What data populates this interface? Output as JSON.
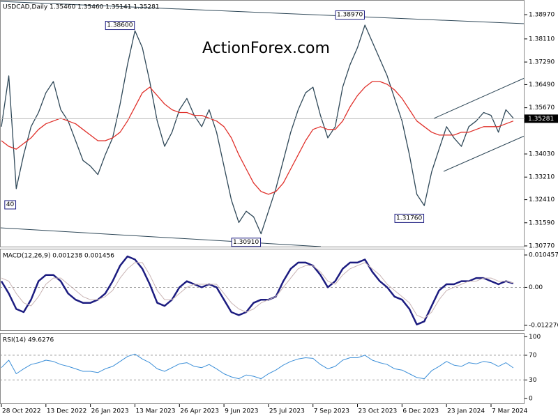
{
  "chart_data": [
    {
      "type": "line",
      "title": "USDCAD,Daily  1.35460 1.35460 1.35141 1.35281",
      "watermark": "ActionForex.com",
      "ylim": [
        1.3072,
        1.3949
      ],
      "yticks": [
        {
          "value": 1.3897,
          "label": "1.38970"
        },
        {
          "value": 1.3811,
          "label": "1.38110"
        },
        {
          "value": 1.3729,
          "label": "1.37290"
        },
        {
          "value": 1.3649,
          "label": "1.36490"
        },
        {
          "value": 1.3567,
          "label": "1.35670"
        },
        {
          "value": 1.3403,
          "label": "1.34030"
        },
        {
          "value": 1.3321,
          "label": "1.33210"
        },
        {
          "value": 1.3241,
          "label": "1.32410"
        },
        {
          "value": 1.3159,
          "label": "1.31590"
        },
        {
          "value": 1.3077,
          "label": "1.30770"
        }
      ],
      "last_price": {
        "value": 1.35281,
        "label": "1.35281"
      },
      "annotations": [
        {
          "text": "1.38600",
          "x": 18,
          "y": 1.386
        },
        {
          "text": "1.38970",
          "x": 49,
          "y": 1.3897
        },
        {
          "text": "1.30910",
          "x": 35,
          "y": 1.3091
        },
        {
          "text": "1.31760",
          "x": 57,
          "y": 1.3176
        },
        {
          "text": "40",
          "x": 2,
          "y": 1.3224
        }
      ],
      "series": [
        {
          "color": "#2f4858",
          "values": [
            1.35,
            1.368,
            1.328,
            1.34,
            1.35,
            1.355,
            1.362,
            1.366,
            1.356,
            1.352,
            1.345,
            1.338,
            1.336,
            1.333,
            1.34,
            1.346,
            1.358,
            1.372,
            1.384,
            1.378,
            1.366,
            1.352,
            1.343,
            1.348,
            1.356,
            1.36,
            1.354,
            1.35,
            1.356,
            1.348,
            1.336,
            1.324,
            1.316,
            1.32,
            1.318,
            1.312,
            1.32,
            1.328,
            1.338,
            1.348,
            1.356,
            1.362,
            1.364,
            1.354,
            1.346,
            1.35,
            1.364,
            1.372,
            1.378,
            1.386,
            1.38,
            1.374,
            1.368,
            1.36,
            1.352,
            1.34,
            1.326,
            1.322,
            1.334,
            1.342,
            1.35,
            1.346,
            1.343,
            1.35,
            1.352,
            1.355,
            1.354,
            1.348,
            1.356,
            1.353
          ]
        },
        {
          "color": "#e0302a",
          "values": [
            1.345,
            1.343,
            1.342,
            1.344,
            1.346,
            1.349,
            1.351,
            1.352,
            1.353,
            1.352,
            1.351,
            1.349,
            1.347,
            1.345,
            1.345,
            1.346,
            1.348,
            1.352,
            1.357,
            1.362,
            1.364,
            1.361,
            1.358,
            1.356,
            1.355,
            1.355,
            1.354,
            1.354,
            1.353,
            1.352,
            1.35,
            1.346,
            1.34,
            1.335,
            1.33,
            1.327,
            1.326,
            1.327,
            1.33,
            1.335,
            1.34,
            1.345,
            1.349,
            1.35,
            1.349,
            1.349,
            1.352,
            1.357,
            1.361,
            1.364,
            1.366,
            1.366,
            1.365,
            1.363,
            1.36,
            1.356,
            1.352,
            1.35,
            1.348,
            1.347,
            1.347,
            1.347,
            1.348,
            1.348,
            1.349,
            1.35,
            1.35,
            1.35,
            1.351,
            1.352
          ]
        }
      ]
    },
    {
      "type": "line",
      "title": "MACD(12,26,9) 0.001238 0.001456",
      "ylim": [
        -0.01408,
        0.01248
      ],
      "yticks": [
        0.010457,
        {
          "value": 0,
          "label": "0.00"
        },
        -0.012276
      ],
      "levels": [
        0
      ],
      "series": [
        {
          "color": "#1c1c80",
          "width": 2.5,
          "values": [
            0.002,
            -0.002,
            -0.007,
            -0.008,
            -0.004,
            0.002,
            0.004,
            0.004,
            0.002,
            -0.002,
            -0.004,
            -0.005,
            -0.005,
            -0.004,
            -0.002,
            0.002,
            0.007,
            0.01,
            0.009,
            0.006,
            0.001,
            -0.005,
            -0.006,
            -0.004,
            0.0,
            0.002,
            0.001,
            0.0,
            0.001,
            0.0,
            -0.004,
            -0.008,
            -0.009,
            -0.008,
            -0.005,
            -0.004,
            -0.004,
            -0.003,
            0.002,
            0.006,
            0.008,
            0.008,
            0.007,
            0.004,
            0.0,
            0.002,
            0.006,
            0.008,
            0.008,
            0.009,
            0.005,
            0.002,
            0.0,
            -0.003,
            -0.004,
            -0.007,
            -0.012,
            -0.011,
            -0.006,
            -0.001,
            0.001,
            0.001,
            0.002,
            0.002,
            0.003,
            0.003,
            0.002,
            0.001,
            0.002,
            0.001238
          ]
        },
        {
          "color": "#c9b4b4",
          "width": 1,
          "values": [
            0.003,
            0.002,
            -0.002,
            -0.005,
            -0.006,
            -0.003,
            0.001,
            0.003,
            0.003,
            0.001,
            -0.001,
            -0.003,
            -0.004,
            -0.004,
            -0.003,
            -0.001,
            0.003,
            0.006,
            0.008,
            0.008,
            0.004,
            -0.001,
            -0.004,
            -0.004,
            -0.002,
            0.0,
            0.001,
            0.001,
            0.001,
            0.001,
            -0.002,
            -0.005,
            -0.007,
            -0.008,
            -0.007,
            -0.005,
            -0.004,
            -0.003,
            0.0,
            0.003,
            0.006,
            0.007,
            0.007,
            0.005,
            0.002,
            0.001,
            0.004,
            0.006,
            0.007,
            0.008,
            0.006,
            0.004,
            0.001,
            -0.001,
            -0.003,
            -0.005,
            -0.009,
            -0.01,
            -0.008,
            -0.004,
            -0.001,
            0.0,
            0.001,
            0.002,
            0.002,
            0.003,
            0.003,
            0.002,
            0.002,
            0.001456
          ]
        }
      ]
    },
    {
      "type": "line",
      "title": "RSI(14) 49.6276",
      "ylim": [
        -9,
        106
      ],
      "yticks": [
        100,
        70,
        30,
        0
      ],
      "levels": [
        70,
        30
      ],
      "categories": [
        "28 Oct 2022",
        null,
        null,
        null,
        null,
        null,
        "13 Dec 2022",
        null,
        null,
        null,
        null,
        null,
        "26 Jan 2023",
        null,
        null,
        null,
        null,
        null,
        "13 Mar 2023",
        null,
        null,
        null,
        null,
        null,
        "26 Apr 2023",
        null,
        null,
        null,
        null,
        null,
        "9 Jun 2023",
        null,
        null,
        null,
        null,
        null,
        "25 Jul 2023",
        null,
        null,
        null,
        null,
        null,
        "7 Sep 2023",
        null,
        null,
        null,
        null,
        null,
        "23 Oct 2023",
        null,
        null,
        null,
        null,
        null,
        "6 Dec 2023",
        null,
        null,
        null,
        null,
        null,
        "23 Jan 2024",
        null,
        null,
        null,
        null,
        null,
        "7 Mar 2024",
        null,
        null,
        null
      ],
      "series": [
        {
          "color": "#3c8fd8",
          "width": 1,
          "values": [
            50,
            62,
            40,
            48,
            55,
            58,
            62,
            60,
            55,
            52,
            48,
            44,
            44,
            42,
            48,
            52,
            60,
            68,
            72,
            64,
            58,
            48,
            44,
            50,
            56,
            58,
            52,
            50,
            55,
            48,
            40,
            35,
            32,
            38,
            36,
            32,
            40,
            46,
            54,
            60,
            64,
            66,
            65,
            55,
            48,
            52,
            62,
            66,
            66,
            70,
            62,
            58,
            55,
            48,
            46,
            40,
            34,
            32,
            45,
            52,
            60,
            54,
            52,
            58,
            56,
            60,
            58,
            52,
            58,
            49.6276
          ]
        }
      ]
    }
  ]
}
